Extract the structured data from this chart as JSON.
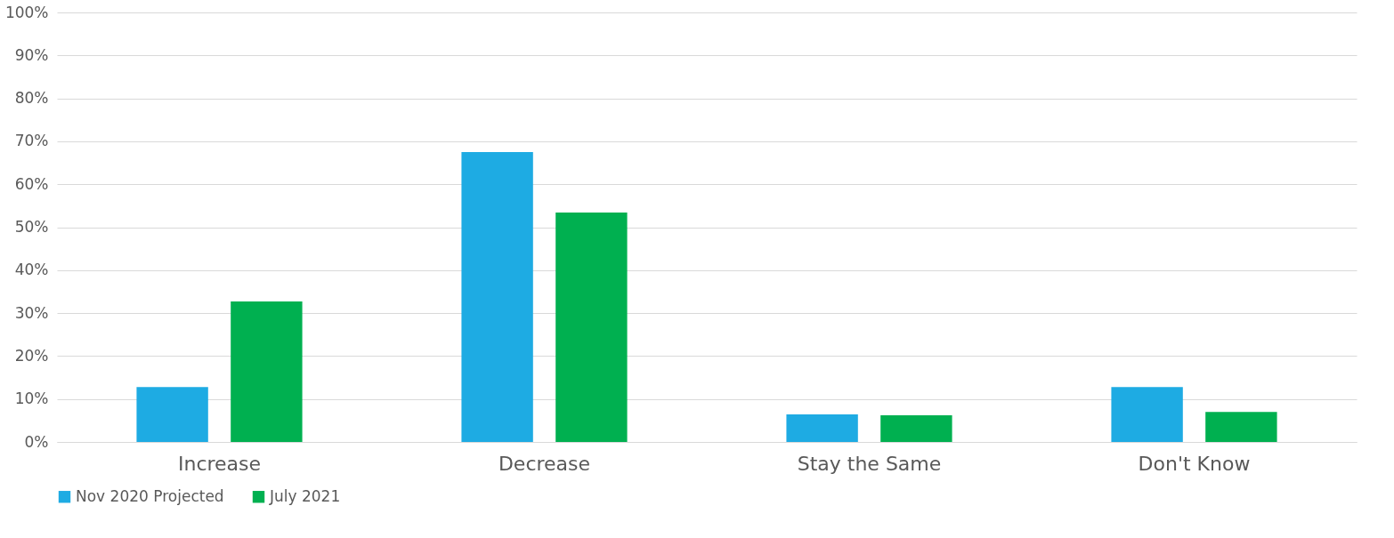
{
  "chart_data": {
    "type": "bar",
    "categories": [
      "Increase",
      "Decrease",
      "Stay the Same",
      "Don't Know"
    ],
    "series": [
      {
        "name": "Nov 2020 Projected",
        "color": "#1eabe3",
        "values": [
          12.8,
          67.5,
          6.4,
          12.8
        ]
      },
      {
        "name": "July 2021",
        "color": "#00b050",
        "values": [
          32.7,
          53.4,
          6.2,
          7.0
        ]
      }
    ],
    "ylim": [
      0,
      100
    ],
    "yticks": [
      {
        "value": 0,
        "label": "0%"
      },
      {
        "value": 10,
        "label": "10%"
      },
      {
        "value": 20,
        "label": "20%"
      },
      {
        "value": 30,
        "label": "30%"
      },
      {
        "value": 40,
        "label": "40%"
      },
      {
        "value": 50,
        "label": "50%"
      },
      {
        "value": 60,
        "label": "60%"
      },
      {
        "value": 70,
        "label": "70%"
      },
      {
        "value": 80,
        "label": "80%"
      },
      {
        "value": 90,
        "label": "90%"
      },
      {
        "value": 100,
        "label": "100%"
      }
    ],
    "grid": "y",
    "legend": "bottom"
  }
}
